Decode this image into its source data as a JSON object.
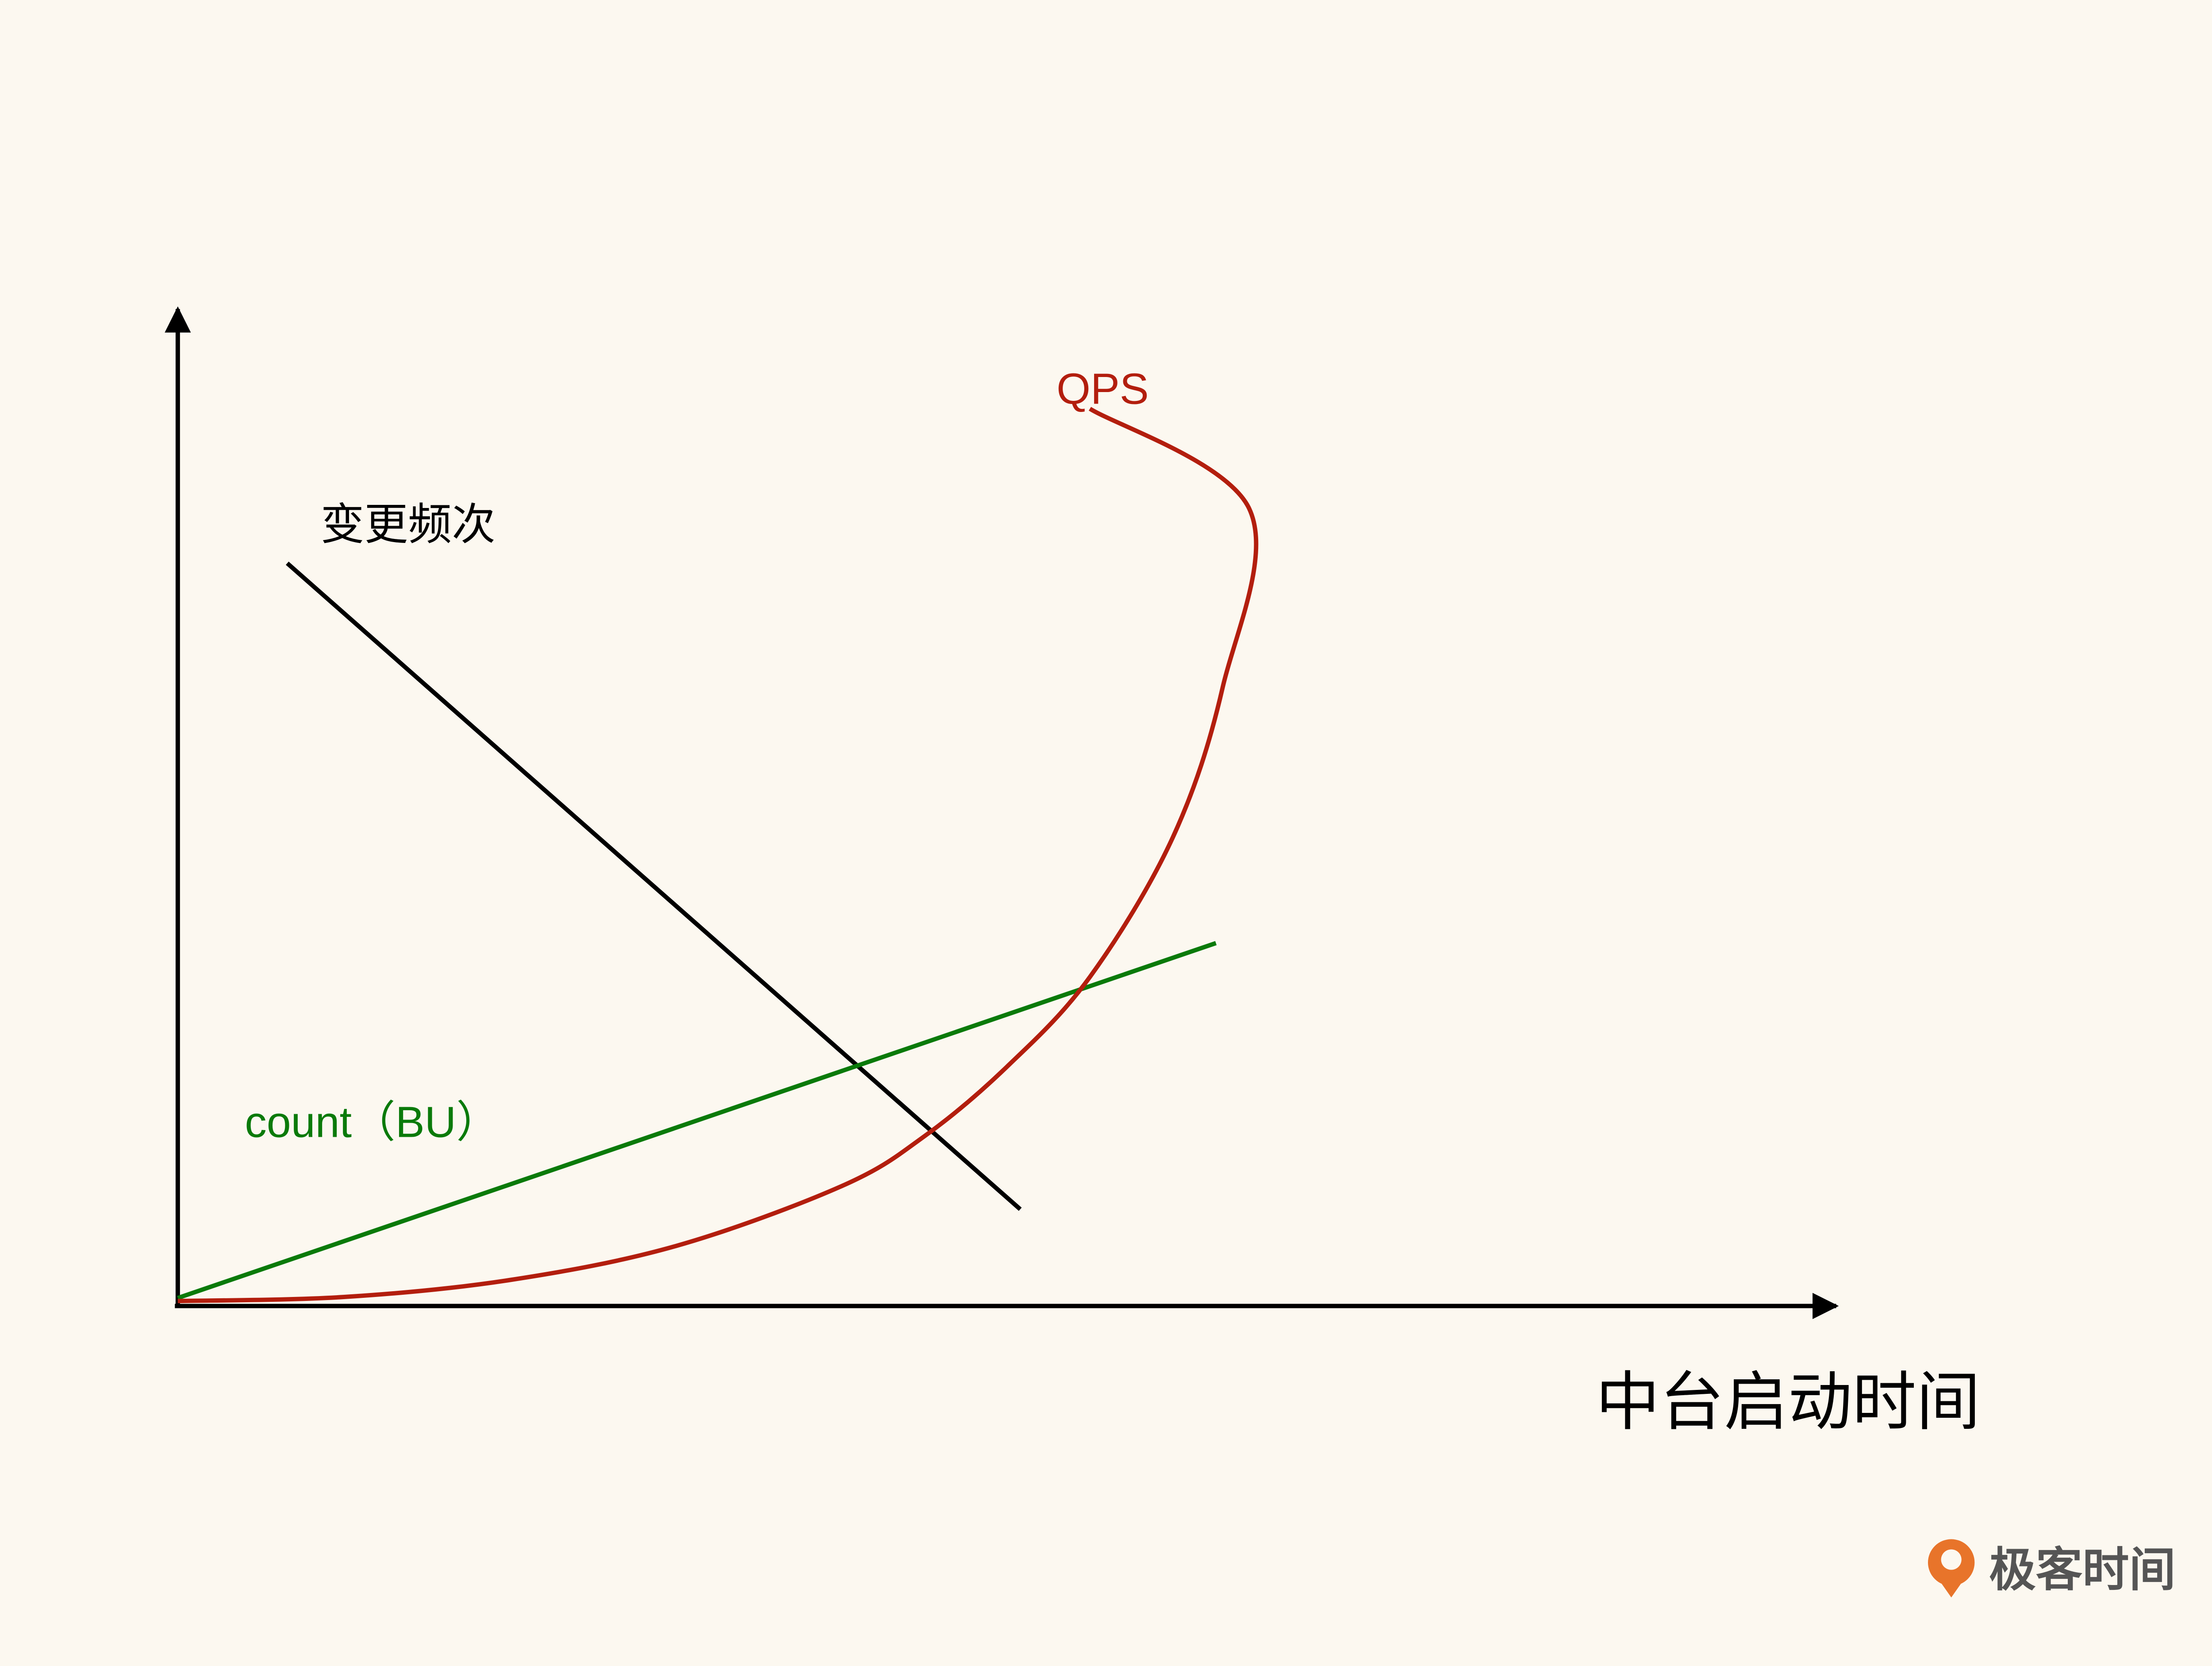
{
  "chart_data": {
    "type": "line",
    "title": "",
    "xlabel": "中台启动时间",
    "ylabel": "",
    "grid": false,
    "legend": "none",
    "axis_color": "#000000",
    "background": "#fcf8f0",
    "series": [
      {
        "name": "变更频次",
        "color": "#000000",
        "shape": "linear-decreasing",
        "points": [
          [
            0.066,
            0.745
          ],
          [
            0.508,
            0.097
          ]
        ]
      },
      {
        "name": "count（BU）",
        "color": "#0a7a0a",
        "shape": "linear-increasing",
        "points": [
          [
            0.0,
            0.008
          ],
          [
            0.626,
            0.364
          ]
        ]
      },
      {
        "name": "QPS",
        "color": "#b31e0e",
        "shape": "exponential",
        "points": [
          [
            0.0,
            0.005
          ],
          [
            0.1,
            0.009
          ],
          [
            0.2,
            0.026
          ],
          [
            0.3,
            0.06
          ],
          [
            0.4,
            0.12
          ],
          [
            0.45,
            0.17
          ],
          [
            0.5,
            0.24
          ],
          [
            0.55,
            0.33
          ],
          [
            0.6,
            0.47
          ],
          [
            0.63,
            0.62
          ],
          [
            0.646,
            0.8
          ],
          [
            0.55,
            0.9
          ]
        ]
      }
    ]
  },
  "logo": {
    "text": "极客时间",
    "color": "#555555",
    "icon_color": "#e8742a"
  }
}
